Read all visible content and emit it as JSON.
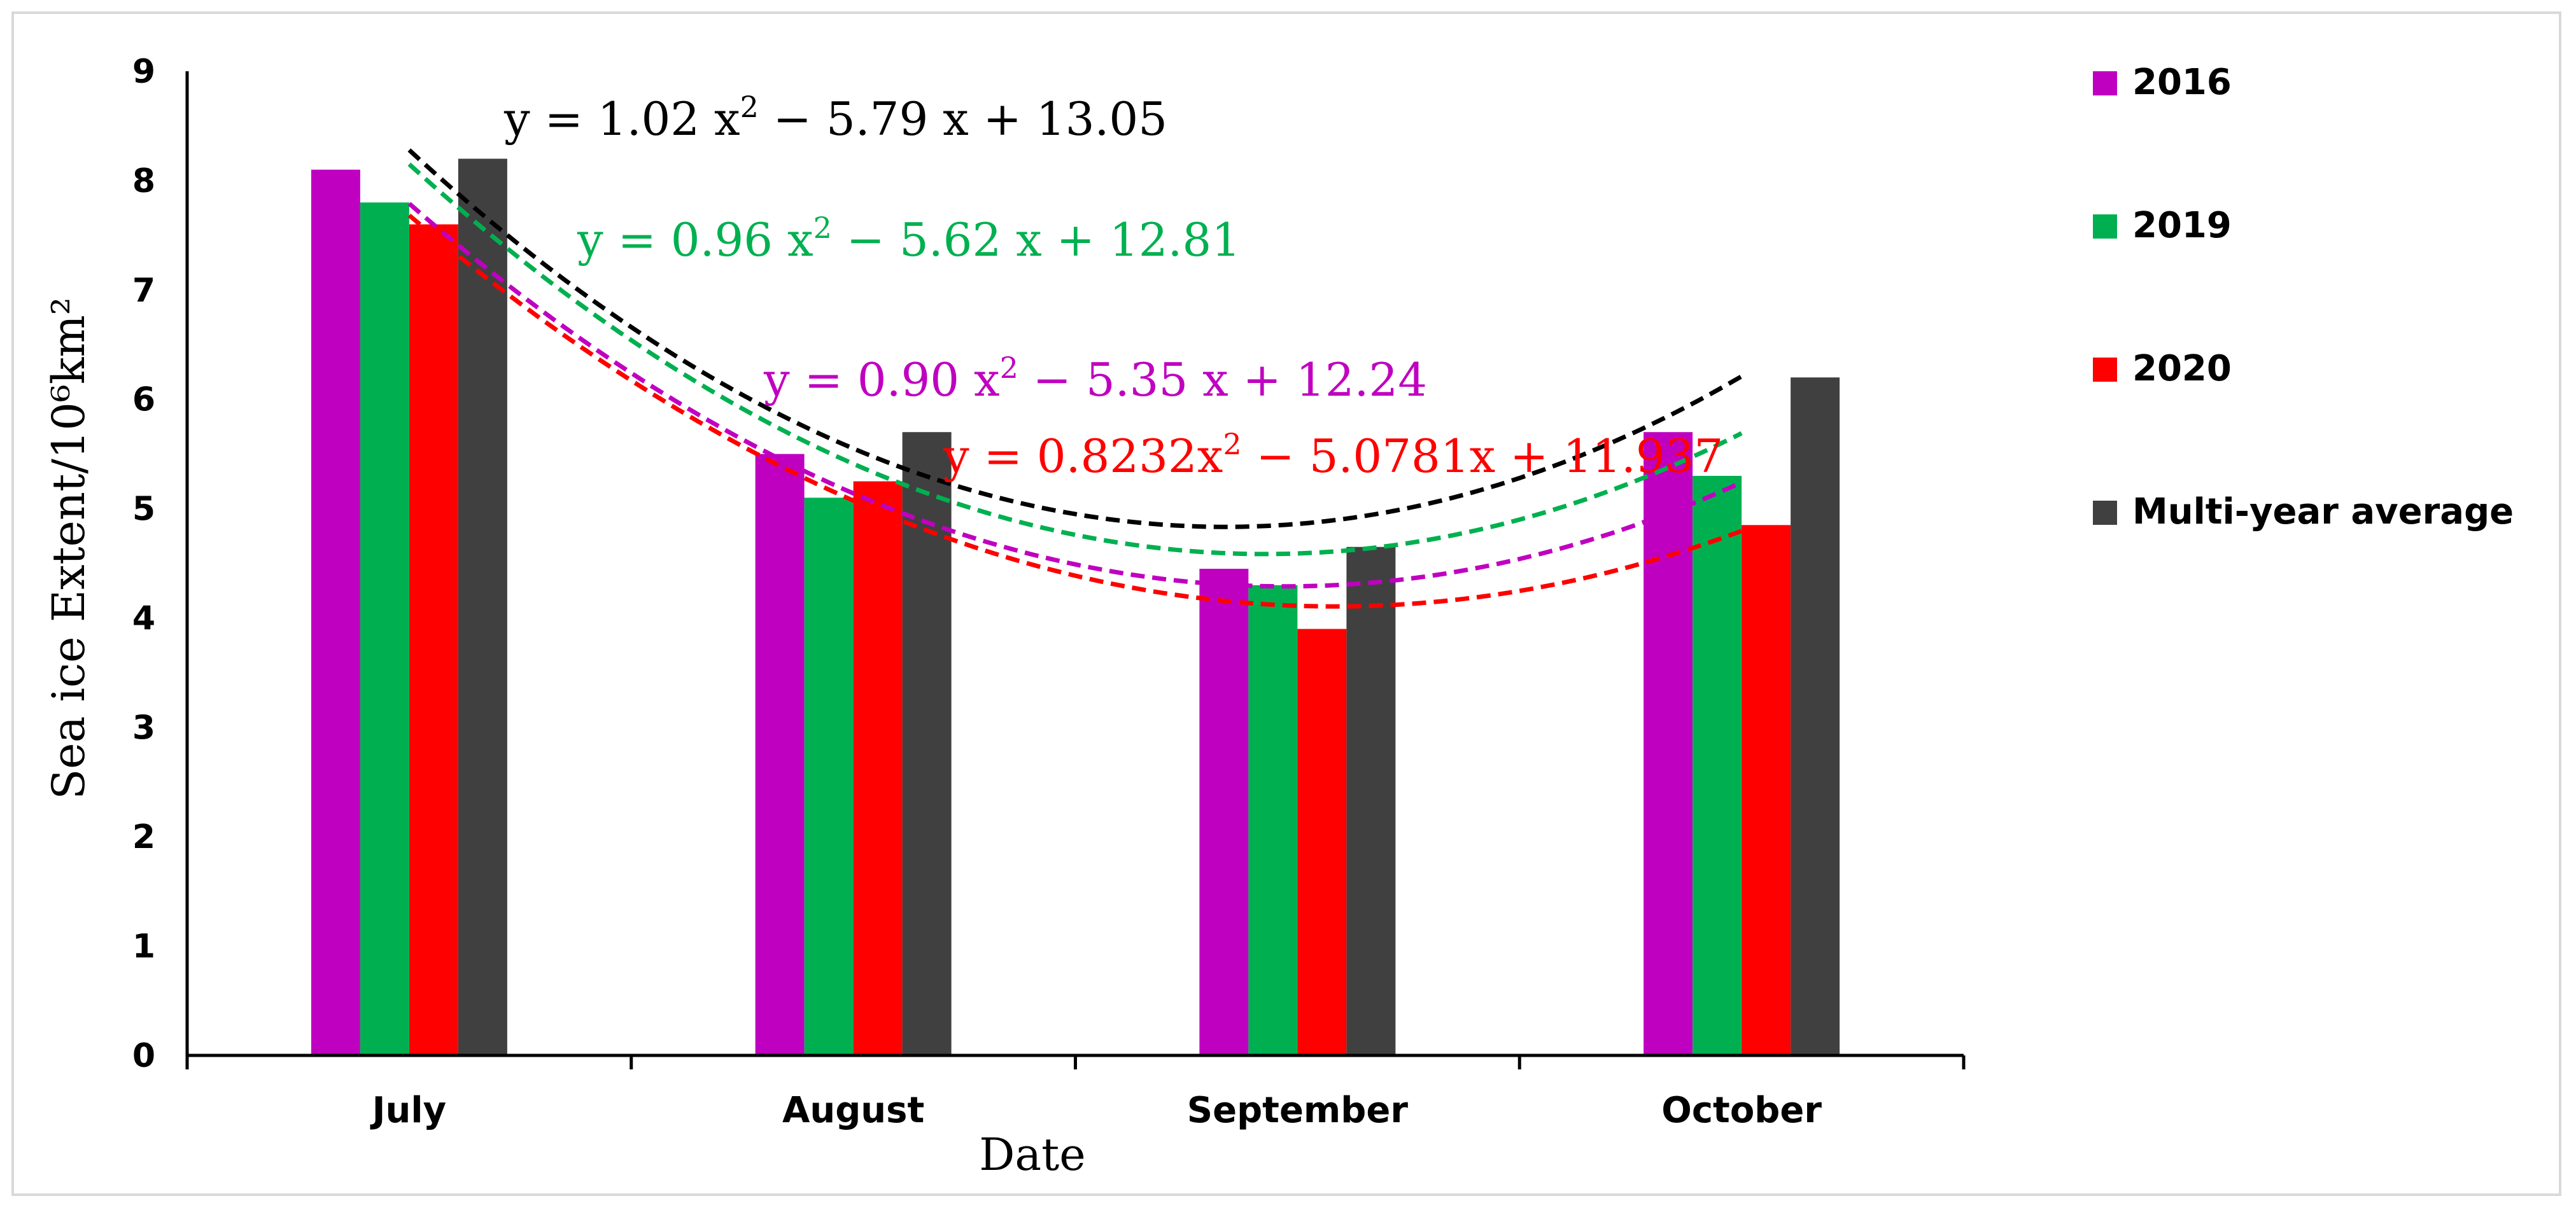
{
  "chart_data": {
    "type": "bar",
    "xlabel": "Date",
    "ylabel": "Sea ice Extent/10⁶km²",
    "ylim": [
      0,
      9
    ],
    "yticks": [
      "0",
      "1",
      "2",
      "3",
      "4",
      "5",
      "6",
      "7",
      "8",
      "9"
    ],
    "categories": [
      "July",
      "August",
      "September",
      "October"
    ],
    "grid": false,
    "legend_position": "right",
    "series": [
      {
        "name": "2016",
        "color": "#c000c0",
        "values": [
          8.1,
          5.5,
          4.45,
          5.7
        ]
      },
      {
        "name": "2019",
        "color": "#00b050",
        "values": [
          7.8,
          5.1,
          4.3,
          5.3
        ]
      },
      {
        "name": "2020",
        "color": "#ff0000",
        "values": [
          7.6,
          5.25,
          3.9,
          4.85
        ]
      },
      {
        "name": "Multi-year average",
        "color": "#404040",
        "values": [
          8.2,
          5.7,
          4.65,
          6.2
        ]
      }
    ],
    "trendlines": [
      {
        "series": "Multi-year average",
        "color": "#000000",
        "coef": [
          1.02,
          -5.79,
          13.05
        ],
        "label_main": "y = 1.02 x",
        "label_sup": "2",
        "label_rest": " − 5.79 x + 13.05"
      },
      {
        "series": "2019",
        "color": "#00b050",
        "coef": [
          0.96,
          -5.62,
          12.81
        ],
        "label_main": "y = 0.96 x",
        "label_sup": "2",
        "label_rest": " − 5.62 x + 12.81"
      },
      {
        "series": "2016",
        "color": "#c000c0",
        "coef": [
          0.9,
          -5.35,
          12.24
        ],
        "label_main": "y = 0.90 x",
        "label_sup": "2",
        "label_rest": " − 5.35 x + 12.24"
      },
      {
        "series": "2020",
        "color": "#ff0000",
        "coef": [
          0.8232,
          -5.0781,
          11.937
        ],
        "label_main": "y = 0.8232x",
        "label_sup": "2",
        "label_rest": " − 5.0781x + 11.937"
      }
    ]
  }
}
